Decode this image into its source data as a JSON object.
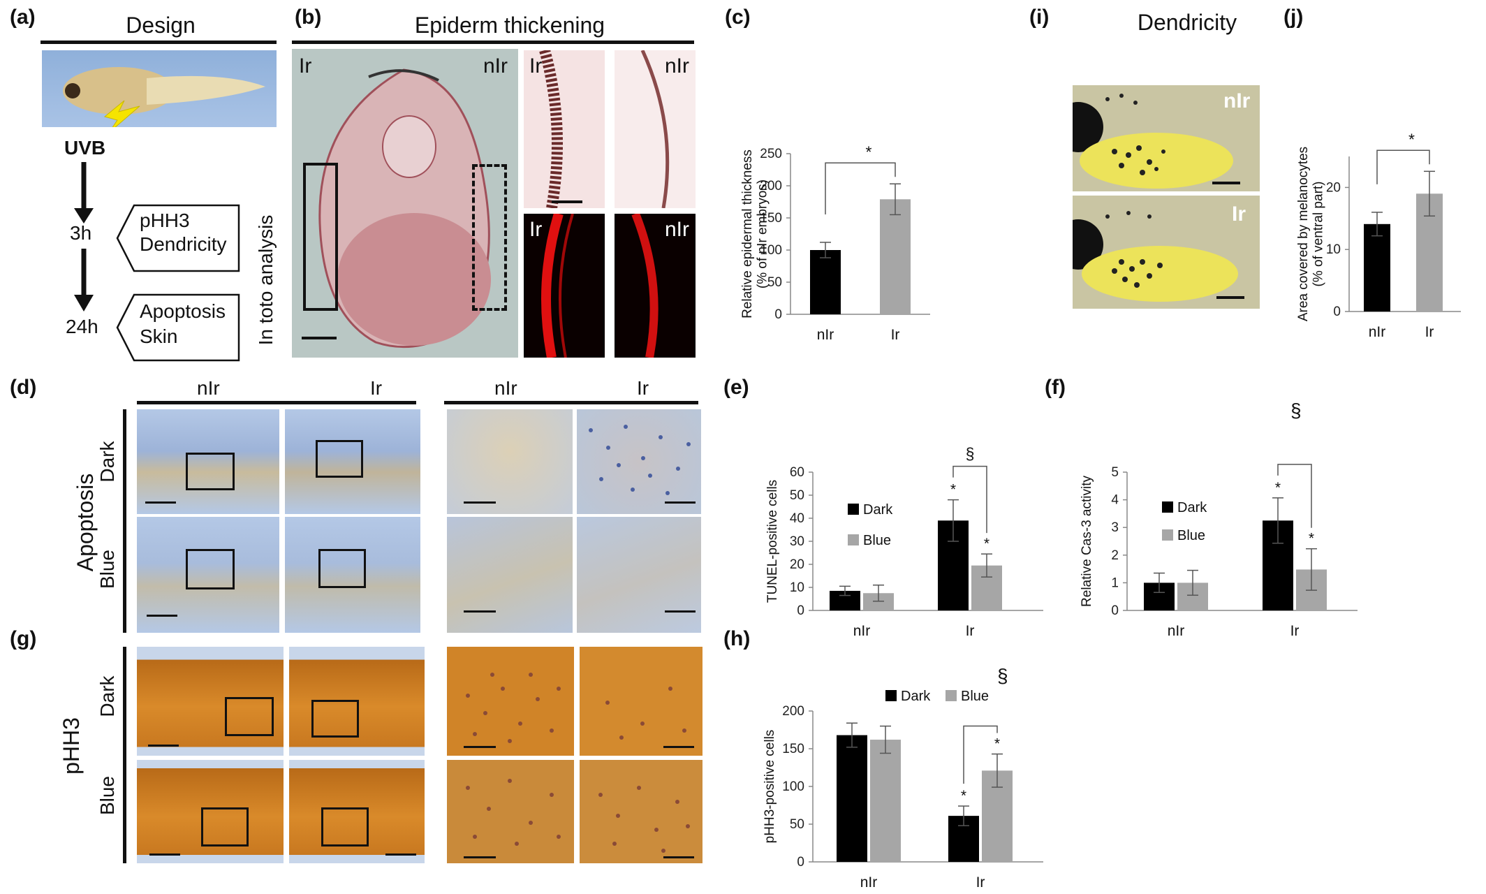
{
  "panels": {
    "a": {
      "label": "(a)",
      "title": "Design",
      "uvb": "UVB",
      "t1": "3h",
      "t2": "24h",
      "box1": [
        "pHH3",
        "Dendricity"
      ],
      "box2": [
        "Apoptosis",
        "Skin"
      ],
      "side": "In toto analysis"
    },
    "b": {
      "label": "(b)",
      "title": "Epiderm thickening",
      "main_left": "Ir",
      "main_right": "nIr",
      "ins_tl": "Ir",
      "ins_tr": "nIr",
      "ins_bl": "Ir",
      "ins_br": "nIr"
    },
    "c": {
      "label": "(c)",
      "sig": "*"
    },
    "d": {
      "label": "(d)",
      "col1": "nIr",
      "col2": "Ir",
      "col3": "nIr",
      "col4": "Ir",
      "row1": "Dark",
      "row2": "Blue",
      "side": "Apoptosis"
    },
    "e": {
      "label": "(e)",
      "sig_a": "§",
      "sig_b": "*",
      "sig_c": "*"
    },
    "f": {
      "label": "(f)",
      "sig_a": "§",
      "sig_b": "*",
      "sig_c": "*"
    },
    "g": {
      "label": "(g)",
      "row1": "Dark",
      "row2": "Blue",
      "side": "pHH3"
    },
    "h": {
      "label": "(h)",
      "sig_a": "§",
      "sig_b": "*",
      "sig_c": "*"
    },
    "i": {
      "label": "(i)",
      "title": "Dendricity",
      "top": "nIr",
      "bottom": "Ir"
    },
    "j": {
      "label": "(j)",
      "sig": "*"
    }
  },
  "chart_data": [
    {
      "id": "c",
      "type": "bar",
      "categories": [
        "nIr",
        "Ir"
      ],
      "values": [
        100,
        179
      ],
      "errors": [
        12,
        24
      ],
      "colors": [
        "#000000",
        "#a6a6a6"
      ],
      "ylabel": "Relative epidermal thickness\n(% of nIr embryos)",
      "ylim": [
        0,
        250
      ],
      "yticks": [
        0,
        50,
        100,
        150,
        200,
        250
      ]
    },
    {
      "id": "e",
      "type": "bar",
      "categories": [
        "nIr",
        "Ir"
      ],
      "series": [
        {
          "name": "Dark",
          "color": "#000000",
          "values": [
            8.5,
            39
          ],
          "errors": [
            2,
            9
          ]
        },
        {
          "name": "Blue",
          "color": "#a6a6a6",
          "values": [
            7.5,
            19.5
          ],
          "errors": [
            3.5,
            5
          ]
        }
      ],
      "ylabel": "TUNEL-positive cells",
      "ylim": [
        0,
        60
      ],
      "yticks": [
        0,
        10,
        20,
        30,
        40,
        50,
        60
      ],
      "legend": "top-left, stacked"
    },
    {
      "id": "f",
      "type": "bar",
      "categories": [
        "nIr",
        "Ir"
      ],
      "series": [
        {
          "name": "Dark",
          "color": "#000000",
          "values": [
            1.0,
            3.25
          ],
          "errors": [
            0.35,
            0.82
          ]
        },
        {
          "name": "Blue",
          "color": "#a6a6a6",
          "values": [
            1.0,
            1.48
          ],
          "errors": [
            0.45,
            0.75
          ]
        }
      ],
      "ylabel": "Relative Cas-3 activity",
      "ylim": [
        0,
        5
      ],
      "yticks": [
        0,
        1,
        2,
        3,
        4,
        5
      ],
      "legend": "top-left, stacked"
    },
    {
      "id": "h",
      "type": "bar",
      "categories": [
        "nIr",
        "Ir"
      ],
      "series": [
        {
          "name": "Dark",
          "color": "#000000",
          "values": [
            168,
            61
          ],
          "errors": [
            16,
            13
          ]
        },
        {
          "name": "Blue",
          "color": "#a6a6a6",
          "values": [
            162,
            121
          ],
          "errors": [
            18,
            22
          ]
        }
      ],
      "ylabel": "pHH3-positive cells",
      "ylim": [
        0,
        200
      ],
      "yticks": [
        0,
        50,
        100,
        150,
        200
      ],
      "legend": "top, inline"
    },
    {
      "id": "j",
      "type": "bar",
      "categories": [
        "nIr",
        "Ir"
      ],
      "values": [
        14.1,
        19
      ],
      "errors": [
        1.9,
        3.6
      ],
      "colors": [
        "#000000",
        "#a6a6a6"
      ],
      "ylabel": "Area covered by melanocytes\n(% of ventral part)",
      "ylim": [
        0,
        25
      ],
      "yticks": [
        0,
        10,
        20
      ]
    }
  ]
}
